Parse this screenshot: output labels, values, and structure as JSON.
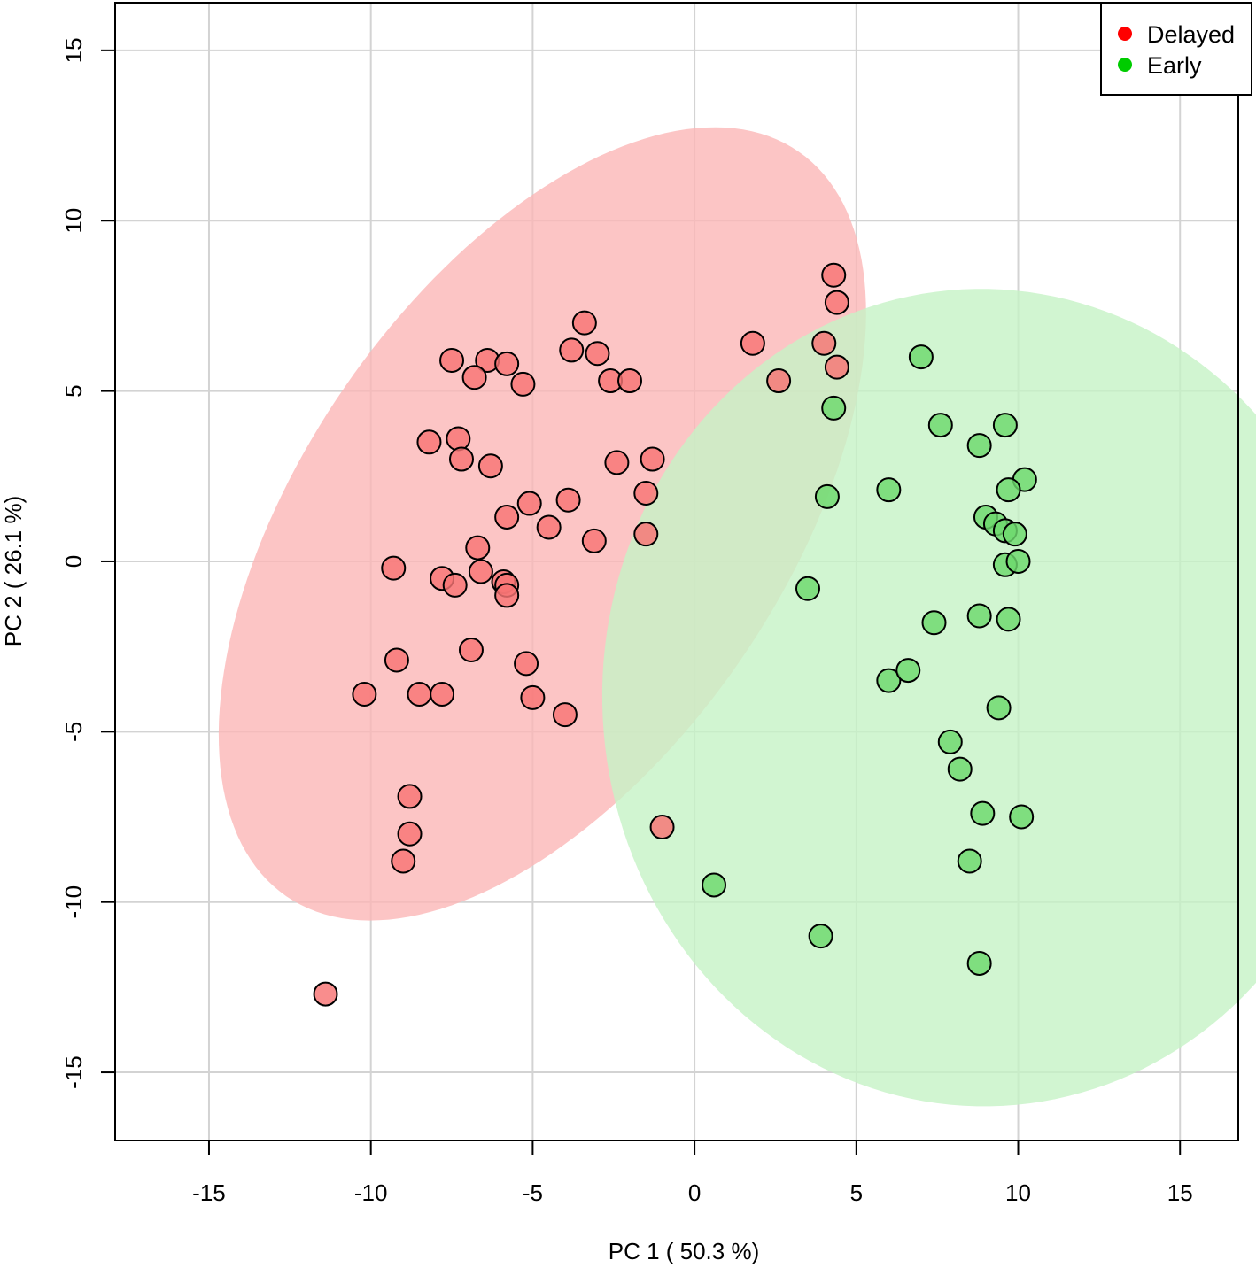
{
  "chart_data": {
    "type": "scatter",
    "title": "",
    "xlabel": "PC 1 ( 50.3 %)",
    "ylabel": "PC 2 ( 26.1 %)",
    "xlim": [
      -17.9,
      16.8
    ],
    "ylim": [
      -17.0,
      16.4
    ],
    "xticks": [
      -15,
      -10,
      -5,
      0,
      5,
      10,
      15
    ],
    "yticks": [
      -15,
      -10,
      -5,
      0,
      5,
      10,
      15
    ],
    "xtick_labels": [
      "-15",
      "-10",
      "-5",
      "0",
      "5",
      "10",
      "15"
    ],
    "ytick_labels": [
      "-15",
      "-10",
      "-5",
      "0",
      "5",
      "10",
      "15"
    ],
    "grid": true,
    "legend_position": "top-right",
    "series": [
      {
        "name": "Delayed",
        "color": "#ff0000",
        "point_fill": "#f87474",
        "ellipse": {
          "center": [
            -4.7,
            1.1
          ],
          "semi_axes": [
            13.5,
            7.3
          ],
          "angle_deg": 53,
          "fill": "#fbb6b6"
        },
        "points": [
          [
            4.3,
            8.4
          ],
          [
            4.4,
            7.6
          ],
          [
            4.0,
            6.4
          ],
          [
            4.4,
            5.7
          ],
          [
            1.8,
            6.4
          ],
          [
            2.6,
            5.3
          ],
          [
            -3.4,
            7.0
          ],
          [
            -3.8,
            6.2
          ],
          [
            -3.0,
            6.1
          ],
          [
            -2.6,
            5.3
          ],
          [
            -2.0,
            5.3
          ],
          [
            -7.5,
            5.9
          ],
          [
            -6.4,
            5.9
          ],
          [
            -5.8,
            5.8
          ],
          [
            -6.8,
            5.4
          ],
          [
            -5.3,
            5.2
          ],
          [
            -8.2,
            3.5
          ],
          [
            -7.3,
            3.6
          ],
          [
            -7.2,
            3.0
          ],
          [
            -6.3,
            2.8
          ],
          [
            -2.4,
            2.9
          ],
          [
            -1.3,
            3.0
          ],
          [
            -1.5,
            2.0
          ],
          [
            -1.5,
            0.8
          ],
          [
            -3.9,
            1.8
          ],
          [
            -5.1,
            1.7
          ],
          [
            -5.8,
            1.3
          ],
          [
            -4.5,
            1.0
          ],
          [
            -3.1,
            0.6
          ],
          [
            -6.7,
            0.4
          ],
          [
            -9.3,
            -0.2
          ],
          [
            -7.8,
            -0.5
          ],
          [
            -7.4,
            -0.7
          ],
          [
            -6.6,
            -0.3
          ],
          [
            -5.9,
            -0.6
          ],
          [
            -5.8,
            -0.7
          ],
          [
            -5.8,
            -1.0
          ],
          [
            -9.2,
            -2.9
          ],
          [
            -6.9,
            -2.6
          ],
          [
            -5.2,
            -3.0
          ],
          [
            -10.2,
            -3.9
          ],
          [
            -8.5,
            -3.9
          ],
          [
            -7.8,
            -3.9
          ],
          [
            -5.0,
            -4.0
          ],
          [
            -4.0,
            -4.5
          ],
          [
            -8.8,
            -6.9
          ],
          [
            -8.8,
            -8.0
          ],
          [
            -9.0,
            -8.8
          ],
          [
            -11.4,
            -12.7
          ],
          [
            -1.0,
            -7.8
          ]
        ]
      },
      {
        "name": "Early",
        "color": "#00cc00",
        "point_fill": "#6cd96c",
        "ellipse": {
          "center": [
            8.9,
            -4.0
          ],
          "semi_axes": [
            12.0,
            11.75
          ],
          "angle_deg": 95,
          "fill": "#c5f2c5"
        },
        "points": [
          [
            7.0,
            6.0
          ],
          [
            4.3,
            4.5
          ],
          [
            7.6,
            4.0
          ],
          [
            9.6,
            4.0
          ],
          [
            8.8,
            3.4
          ],
          [
            10.2,
            2.4
          ],
          [
            9.7,
            2.1
          ],
          [
            6.0,
            2.1
          ],
          [
            4.1,
            1.9
          ],
          [
            9.0,
            1.3
          ],
          [
            9.3,
            1.1
          ],
          [
            9.6,
            0.9
          ],
          [
            9.9,
            0.8
          ],
          [
            9.6,
            -0.1
          ],
          [
            10.0,
            0.0
          ],
          [
            3.5,
            -0.8
          ],
          [
            7.4,
            -1.8
          ],
          [
            8.8,
            -1.6
          ],
          [
            9.7,
            -1.7
          ],
          [
            6.0,
            -3.5
          ],
          [
            6.6,
            -3.2
          ],
          [
            9.4,
            -4.3
          ],
          [
            7.9,
            -5.3
          ],
          [
            8.2,
            -6.1
          ],
          [
            8.9,
            -7.4
          ],
          [
            10.1,
            -7.5
          ],
          [
            8.5,
            -8.8
          ],
          [
            0.6,
            -9.5
          ],
          [
            3.9,
            -11.0
          ],
          [
            8.8,
            -11.8
          ]
        ]
      }
    ]
  }
}
